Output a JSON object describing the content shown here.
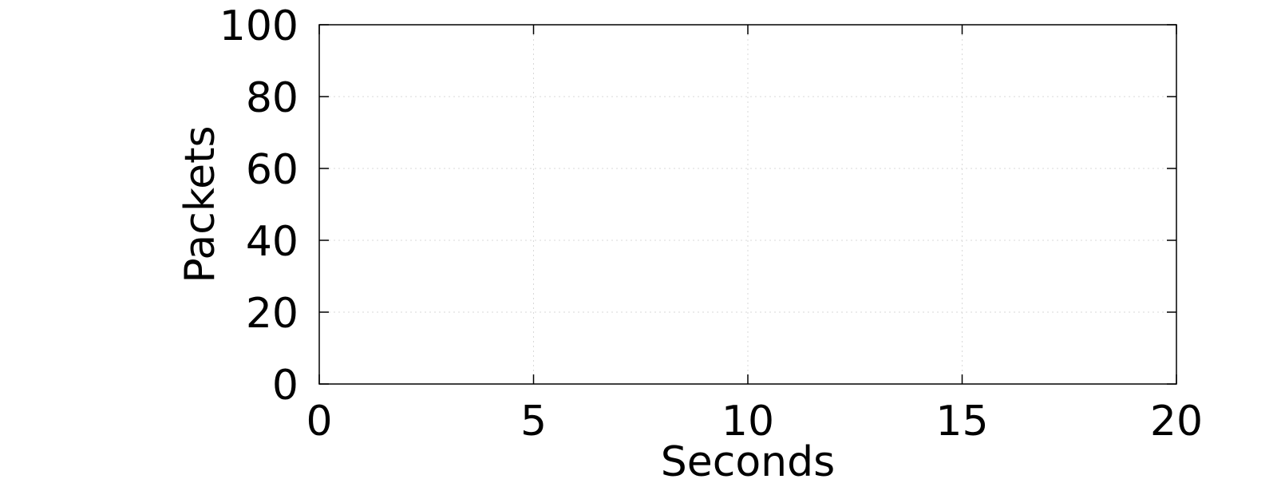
{
  "chart_data": {
    "type": "line",
    "title": "",
    "xlabel": "Seconds",
    "ylabel": "Packets",
    "xlim": [
      0,
      20
    ],
    "ylim": [
      0,
      100
    ],
    "x_ticks": [
      0,
      5,
      10,
      15,
      20
    ],
    "y_ticks": [
      0,
      20,
      40,
      60,
      80,
      100
    ],
    "grid": true,
    "series": []
  }
}
